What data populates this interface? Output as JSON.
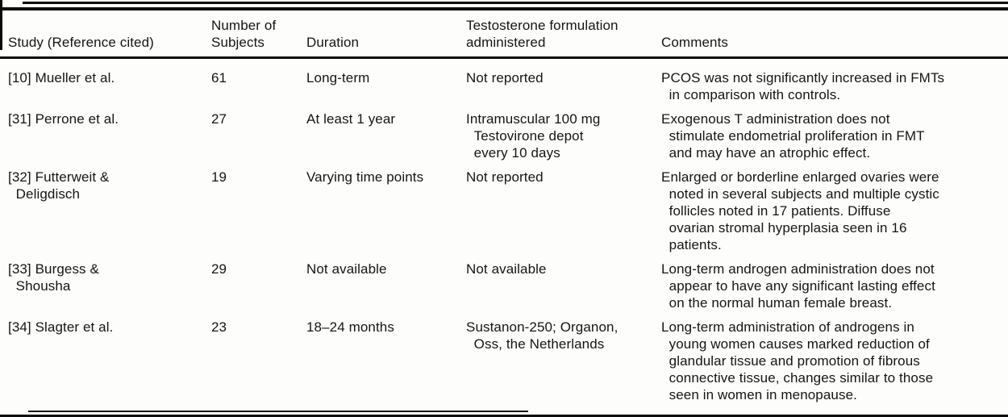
{
  "table": {
    "columns": [
      {
        "label": "Study (Reference cited)"
      },
      {
        "label": "Number of\nSubjects"
      },
      {
        "label": "Duration"
      },
      {
        "label": "Testosterone formulation\nadministered"
      },
      {
        "label": "Comments"
      }
    ],
    "rows": [
      {
        "study": "[10] Mueller et al.",
        "subjects": "61",
        "duration": "Long-term",
        "formulation": "Not reported",
        "comments": "PCOS was not significantly increased in FMTs\n  in comparison with controls."
      },
      {
        "study": "[31] Perrone et al.",
        "subjects": "27",
        "duration": "At least 1 year",
        "formulation": "Intramuscular 100 mg\n  Testovirone depot\n  every 10 days",
        "comments": "Exogenous T administration does not\n  stimulate endometrial proliferation in FMT\n  and may have an atrophic effect."
      },
      {
        "study": "[32] Futterweit &\n  Deligdisch",
        "subjects": "19",
        "duration": "Varying time points",
        "formulation": "Not reported",
        "comments": "Enlarged or borderline enlarged ovaries were\n  noted in several subjects and multiple cystic\n  follicles noted in 17 patients. Diffuse\n  ovarian stromal hyperplasia seen in 16\n  patients."
      },
      {
        "study": "[33] Burgess &\n  Shousha",
        "subjects": "29",
        "duration": "Not available",
        "formulation": "Not available",
        "comments": "Long-term androgen administration does not\n  appear to have any significant lasting effect\n  on the normal human female breast."
      },
      {
        "study": "[34] Slagter et al.",
        "subjects": "23",
        "duration": "18–24 months",
        "formulation": "Sustanon-250; Organon,\n  Oss, the Netherlands",
        "comments": "Long-term administration of androgens in\n  young women causes marked reduction of\n  glandular tissue and promotion of fibrous\n  connective tissue, changes similar to those\n  seen in women in menopause."
      }
    ]
  }
}
